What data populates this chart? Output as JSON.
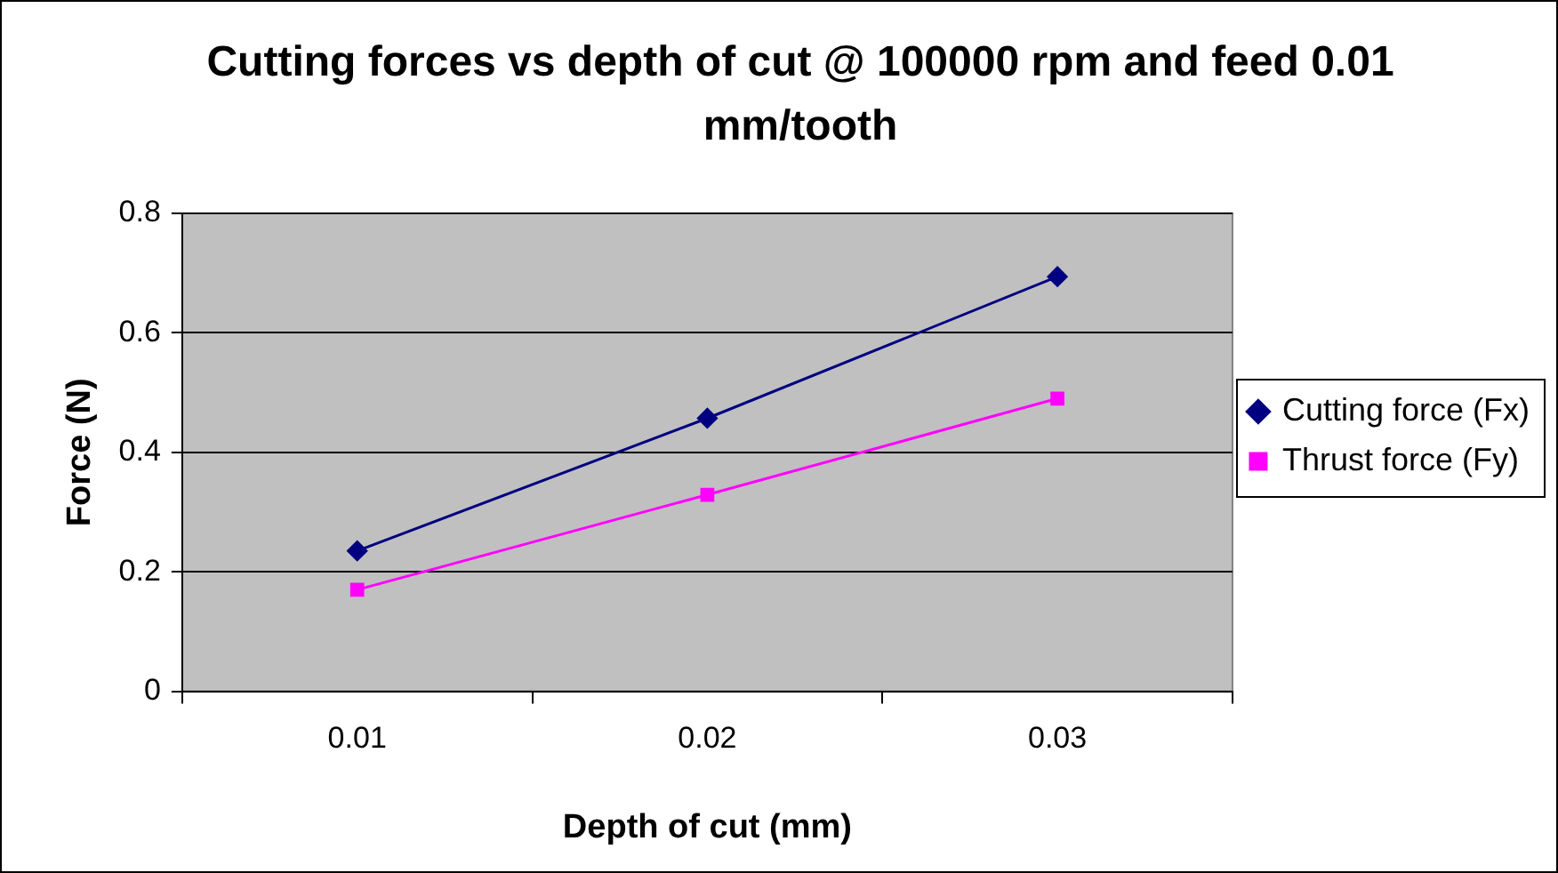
{
  "chart_data": {
    "type": "line",
    "title": "Cutting forces vs depth of cut @ 100000 rpm and feed 0.01 mm/tooth",
    "xlabel": "Depth of cut (mm)",
    "ylabel": "Force (N)",
    "categories": [
      "0.01",
      "0.02",
      "0.03"
    ],
    "series": [
      {
        "name": "Cutting force (Fx)",
        "color": "#000080",
        "marker": "diamond",
        "values": [
          0.235,
          0.457,
          0.694
        ]
      },
      {
        "name": "Thrust force (Fy)",
        "color": "#ff00ff",
        "marker": "square",
        "values": [
          0.17,
          0.329,
          0.49
        ]
      }
    ],
    "ylim": [
      0,
      0.8
    ],
    "yticks": [
      0,
      0.2,
      0.4,
      0.6,
      0.8
    ],
    "grid": "y",
    "legend": "right"
  }
}
